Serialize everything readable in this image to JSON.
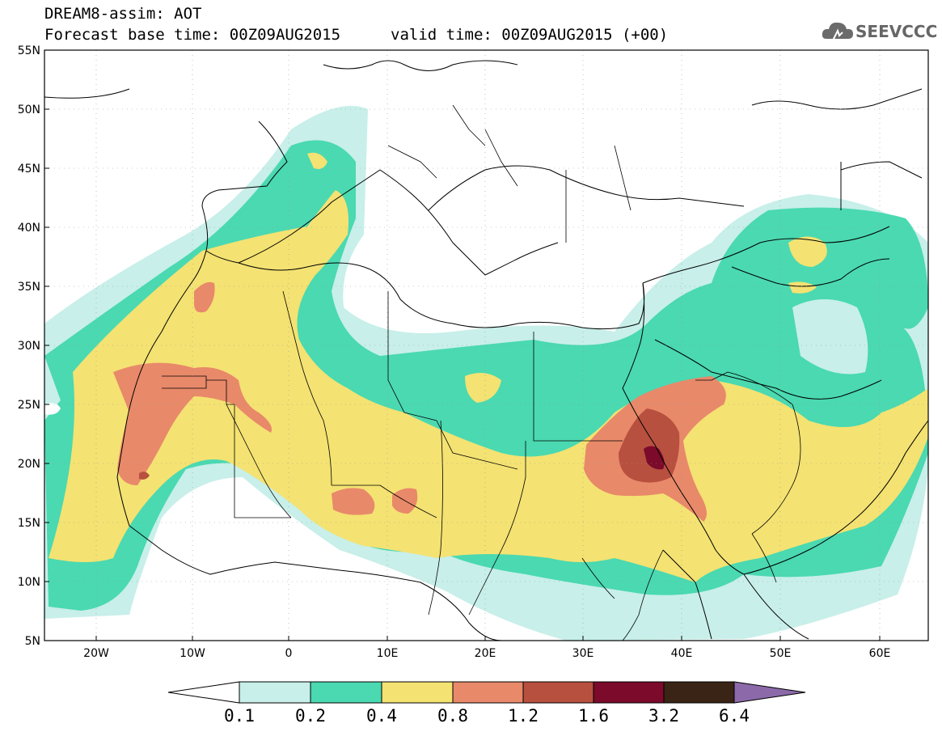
{
  "header": {
    "line1": "DREAM8-assim: AOT",
    "line2": "Forecast base time: 00Z09AUG2015",
    "valid": "valid time: 00Z09AUG2015 (+00)",
    "logo_text": "SEEVCCC"
  },
  "axes": {
    "lat_labels": [
      "55N",
      "50N",
      "45N",
      "40N",
      "35N",
      "30N",
      "25N",
      "20N",
      "15N",
      "10N",
      "5N"
    ],
    "lon_labels": [
      "20W",
      "10W",
      "0",
      "10E",
      "20E",
      "30E",
      "40E",
      "50E",
      "60E"
    ]
  },
  "colorbar": {
    "labels": [
      "0.1",
      "0.2",
      "0.4",
      "0.8",
      "1.2",
      "1.6",
      "3.2",
      "6.4"
    ],
    "colors": [
      "#c8efe9",
      "#4ad9b1",
      "#f4e272",
      "#e8896a",
      "#b8503f",
      "#7c0a2a",
      "#3a2416",
      "#8c6aaa"
    ]
  }
}
